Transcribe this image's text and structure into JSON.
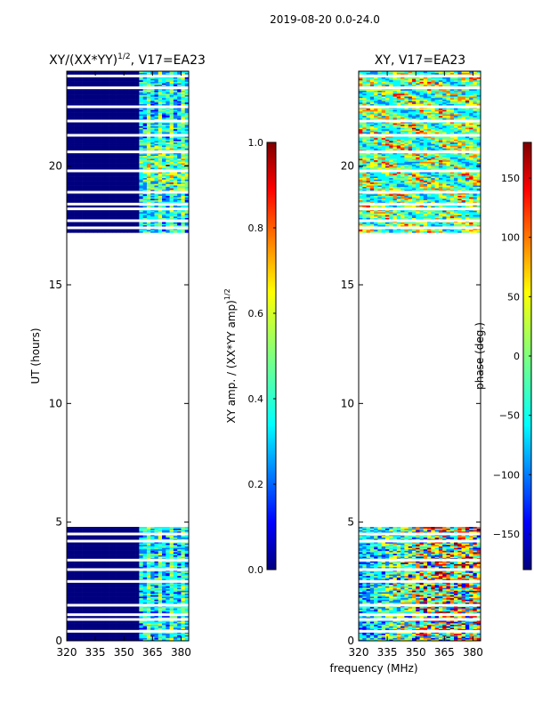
{
  "figure": {
    "suptitle": "2019-08-20 0.0-24.0",
    "xlabel": "frequency (MHz)"
  },
  "colors": {
    "jet": [
      "#00007f",
      "#0000ff",
      "#007fff",
      "#00ffff",
      "#7fff7f",
      "#ffff00",
      "#ff7f00",
      "#ff0000",
      "#7f0000"
    ],
    "dark_blue": "#00007f",
    "white": "#ffffff"
  },
  "chart_data": [
    {
      "type": "heatmap",
      "title": "XY/(XX*YY)",
      "title_sup": "1/2",
      "title_suffix": ", V17=EA23",
      "xlabel": "frequency (MHz)",
      "ylabel": "UT (hours)",
      "xlim": [
        320,
        384
      ],
      "ylim": [
        0,
        24
      ],
      "xticks": [
        320,
        335,
        350,
        365,
        380
      ],
      "yticks": [
        0,
        5,
        10,
        15,
        20
      ],
      "data_segments": [
        [
          0.0,
          4.8
        ],
        [
          17.2,
          24.0
        ]
      ],
      "gap_hours": [
        0.4,
        0.9,
        1.1,
        1.5,
        2.5,
        3.0,
        3.4,
        4.2,
        4.5,
        17.4,
        17.7,
        18.2,
        18.4,
        18.9,
        19.8,
        20.6,
        21.3,
        21.9,
        22.5,
        23.3,
        23.8
      ],
      "active_channels_mhz": [
        359,
        384
      ],
      "colorbar": {
        "label": "XY amp. / (XX*YY amp)",
        "label_sup": "1/2",
        "range": [
          0.0,
          1.0
        ],
        "ticks": [
          "0.0",
          "0.2",
          "0.4",
          "0.6",
          "0.8",
          "1.0"
        ]
      }
    },
    {
      "type": "heatmap",
      "title": "XY, V17=EA23",
      "xlabel": "frequency (MHz)",
      "ylabel": "",
      "xlim": [
        320,
        384
      ],
      "ylim": [
        0,
        24
      ],
      "xticks": [
        320,
        335,
        350,
        365,
        380
      ],
      "yticks": [
        0,
        5,
        10,
        15,
        20
      ],
      "data_segments": [
        [
          0.0,
          4.8
        ],
        [
          17.2,
          24.0
        ]
      ],
      "gap_hours": [
        0.4,
        0.9,
        1.1,
        1.5,
        2.5,
        3.0,
        3.4,
        4.2,
        4.5,
        17.4,
        17.7,
        18.2,
        18.4,
        18.9,
        19.8,
        20.6,
        21.3,
        21.9,
        22.5,
        23.3,
        23.8
      ],
      "colorbar": {
        "label": "phase (deg.)",
        "range": [
          -180,
          180
        ],
        "ticks": [
          "150",
          "100",
          "50",
          "0",
          "−50",
          "−100",
          "−150"
        ]
      }
    }
  ]
}
